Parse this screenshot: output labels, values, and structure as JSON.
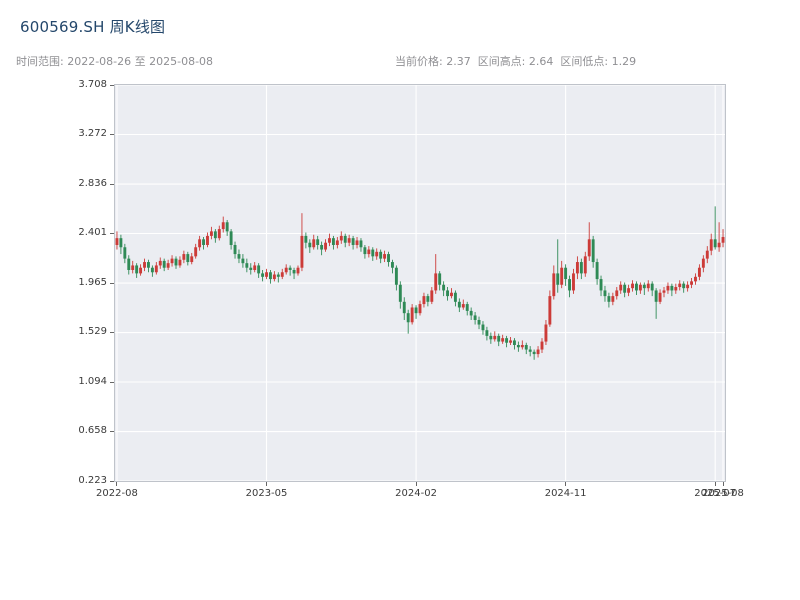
{
  "header": {
    "title": "600569.SH 周K线图",
    "range_label": "时间范围: 2022-08-26 至 2025-08-08",
    "stats_label": "当前价格: 2.37  区间高点: 2.64  区间低点: 1.29"
  },
  "chart_data": {
    "type": "candlestick",
    "symbol": "600569.SH",
    "period": "weekly",
    "title": "600569.SH 周K线图",
    "start_date": "2022-08-26",
    "end_date": "2025-08-08",
    "current_price": 2.37,
    "range_high": 2.64,
    "range_low": 1.29,
    "ylim": [
      0.223,
      3.708
    ],
    "y_ticks": [
      "3.708",
      "3.272",
      "2.836",
      "2.401",
      "1.965",
      "1.529",
      "1.094",
      "0.658",
      "0.223"
    ],
    "x_ticks": [
      {
        "label": "2022-08",
        "week": 0
      },
      {
        "label": "2023-05",
        "week": 38
      },
      {
        "label": "2024-02",
        "week": 76
      },
      {
        "label": "2024-11",
        "week": 114
      },
      {
        "label": "2025-07",
        "week": 152
      },
      {
        "label": "2025-08",
        "week": 154
      }
    ],
    "up_color": "#cc3b38",
    "down_color": "#2f8a56",
    "grid_color": "#ffffff",
    "plot_bg": "#ebedf2",
    "candles": [
      [
        2.3,
        2.42,
        2.26,
        2.36
      ],
      [
        2.36,
        2.39,
        2.22,
        2.28
      ],
      [
        2.28,
        2.31,
        2.14,
        2.18
      ],
      [
        2.18,
        2.21,
        2.04,
        2.08
      ],
      [
        2.08,
        2.16,
        2.05,
        2.12
      ],
      [
        2.12,
        2.14,
        2.01,
        2.05
      ],
      [
        2.05,
        2.13,
        2.03,
        2.1
      ],
      [
        2.1,
        2.18,
        2.07,
        2.15
      ],
      [
        2.15,
        2.17,
        2.06,
        2.1
      ],
      [
        2.1,
        2.12,
        2.02,
        2.06
      ],
      [
        2.06,
        2.15,
        2.04,
        2.12
      ],
      [
        2.12,
        2.19,
        2.09,
        2.16
      ],
      [
        2.16,
        2.18,
        2.07,
        2.1
      ],
      [
        2.1,
        2.17,
        2.08,
        2.14
      ],
      [
        2.14,
        2.21,
        2.11,
        2.18
      ],
      [
        2.18,
        2.2,
        2.09,
        2.12
      ],
      [
        2.12,
        2.2,
        2.1,
        2.17
      ],
      [
        2.17,
        2.25,
        2.14,
        2.22
      ],
      [
        2.22,
        2.24,
        2.12,
        2.15
      ],
      [
        2.15,
        2.23,
        2.13,
        2.2
      ],
      [
        2.2,
        2.31,
        2.18,
        2.28
      ],
      [
        2.28,
        2.38,
        2.25,
        2.35
      ],
      [
        2.35,
        2.37,
        2.26,
        2.3
      ],
      [
        2.3,
        2.41,
        2.28,
        2.38
      ],
      [
        2.38,
        2.46,
        2.35,
        2.42
      ],
      [
        2.42,
        2.44,
        2.32,
        2.36
      ],
      [
        2.36,
        2.47,
        2.34,
        2.44
      ],
      [
        2.44,
        2.55,
        2.41,
        2.5
      ],
      [
        2.5,
        2.52,
        2.38,
        2.42
      ],
      [
        2.42,
        2.44,
        2.26,
        2.3
      ],
      [
        2.3,
        2.33,
        2.18,
        2.22
      ],
      [
        2.22,
        2.26,
        2.14,
        2.18
      ],
      [
        2.18,
        2.22,
        2.1,
        2.14
      ],
      [
        2.14,
        2.18,
        2.06,
        2.1
      ],
      [
        2.1,
        2.14,
        2.04,
        2.08
      ],
      [
        2.08,
        2.15,
        2.06,
        2.12
      ],
      [
        2.12,
        2.14,
        2.01,
        2.05
      ],
      [
        2.05,
        2.08,
        1.98,
        2.02
      ],
      [
        2.02,
        2.09,
        2.0,
        2.06
      ],
      [
        2.06,
        2.08,
        1.96,
        2.0
      ],
      [
        2.0,
        2.07,
        1.98,
        2.04
      ],
      [
        2.04,
        2.06,
        1.97,
        2.02
      ],
      [
        2.02,
        2.09,
        2.0,
        2.06
      ],
      [
        2.06,
        2.13,
        2.04,
        2.1
      ],
      [
        2.1,
        2.12,
        2.03,
        2.08
      ],
      [
        2.08,
        2.1,
        2.0,
        2.05
      ],
      [
        2.05,
        2.12,
        2.03,
        2.1
      ],
      [
        2.1,
        2.58,
        2.07,
        2.38
      ],
      [
        2.38,
        2.41,
        2.27,
        2.32
      ],
      [
        2.32,
        2.35,
        2.23,
        2.28
      ],
      [
        2.28,
        2.39,
        2.26,
        2.35
      ],
      [
        2.35,
        2.38,
        2.26,
        2.3
      ],
      [
        2.3,
        2.33,
        2.21,
        2.26
      ],
      [
        2.26,
        2.35,
        2.24,
        2.32
      ],
      [
        2.32,
        2.4,
        2.29,
        2.36
      ],
      [
        2.36,
        2.38,
        2.26,
        2.3
      ],
      [
        2.3,
        2.37,
        2.27,
        2.34
      ],
      [
        2.34,
        2.42,
        2.31,
        2.38
      ],
      [
        2.38,
        2.4,
        2.28,
        2.32
      ],
      [
        2.32,
        2.39,
        2.29,
        2.36
      ],
      [
        2.36,
        2.38,
        2.26,
        2.3
      ],
      [
        2.3,
        2.37,
        2.27,
        2.34
      ],
      [
        2.34,
        2.36,
        2.24,
        2.28
      ],
      [
        2.28,
        2.3,
        2.18,
        2.22
      ],
      [
        2.22,
        2.29,
        2.19,
        2.26
      ],
      [
        2.26,
        2.28,
        2.16,
        2.2
      ],
      [
        2.2,
        2.27,
        2.17,
        2.24
      ],
      [
        2.24,
        2.26,
        2.14,
        2.18
      ],
      [
        2.18,
        2.25,
        2.15,
        2.22
      ],
      [
        2.22,
        2.24,
        2.11,
        2.15
      ],
      [
        2.15,
        2.17,
        2.05,
        2.1
      ],
      [
        2.1,
        2.12,
        1.9,
        1.95
      ],
      [
        1.95,
        1.98,
        1.74,
        1.8
      ],
      [
        1.8,
        1.84,
        1.64,
        1.7
      ],
      [
        1.7,
        1.73,
        1.52,
        1.62
      ],
      [
        1.62,
        1.78,
        1.6,
        1.75
      ],
      [
        1.75,
        1.77,
        1.65,
        1.7
      ],
      [
        1.7,
        1.81,
        1.68,
        1.78
      ],
      [
        1.78,
        1.88,
        1.75,
        1.85
      ],
      [
        1.85,
        1.87,
        1.76,
        1.8
      ],
      [
        1.8,
        1.93,
        1.78,
        1.9
      ],
      [
        1.9,
        2.22,
        1.87,
        2.05
      ],
      [
        2.05,
        2.07,
        1.9,
        1.95
      ],
      [
        1.95,
        1.98,
        1.85,
        1.9
      ],
      [
        1.9,
        1.93,
        1.81,
        1.85
      ],
      [
        1.85,
        1.92,
        1.83,
        1.88
      ],
      [
        1.88,
        1.9,
        1.76,
        1.8
      ],
      [
        1.8,
        1.83,
        1.71,
        1.75
      ],
      [
        1.75,
        1.82,
        1.73,
        1.78
      ],
      [
        1.78,
        1.8,
        1.68,
        1.72
      ],
      [
        1.72,
        1.75,
        1.64,
        1.68
      ],
      [
        1.68,
        1.71,
        1.6,
        1.64
      ],
      [
        1.64,
        1.67,
        1.56,
        1.6
      ],
      [
        1.6,
        1.63,
        1.51,
        1.55
      ],
      [
        1.55,
        1.58,
        1.46,
        1.5
      ],
      [
        1.5,
        1.53,
        1.43,
        1.47
      ],
      [
        1.47,
        1.54,
        1.45,
        1.5
      ],
      [
        1.5,
        1.52,
        1.41,
        1.45
      ],
      [
        1.45,
        1.51,
        1.43,
        1.48
      ],
      [
        1.48,
        1.5,
        1.4,
        1.44
      ],
      [
        1.44,
        1.49,
        1.42,
        1.46
      ],
      [
        1.46,
        1.48,
        1.38,
        1.42
      ],
      [
        1.42,
        1.45,
        1.36,
        1.4
      ],
      [
        1.4,
        1.46,
        1.38,
        1.42
      ],
      [
        1.42,
        1.44,
        1.34,
        1.38
      ],
      [
        1.38,
        1.41,
        1.32,
        1.36
      ],
      [
        1.36,
        1.38,
        1.29,
        1.34
      ],
      [
        1.34,
        1.41,
        1.31,
        1.38
      ],
      [
        1.38,
        1.48,
        1.35,
        1.45
      ],
      [
        1.45,
        1.64,
        1.42,
        1.6
      ],
      [
        1.6,
        1.9,
        1.58,
        1.85
      ],
      [
        1.85,
        2.12,
        1.82,
        2.05
      ],
      [
        2.05,
        2.35,
        1.88,
        1.95
      ],
      [
        1.95,
        2.16,
        1.92,
        2.1
      ],
      [
        2.1,
        2.13,
        1.94,
        2.0
      ],
      [
        2.0,
        2.03,
        1.84,
        1.9
      ],
      [
        1.9,
        2.09,
        1.87,
        2.05
      ],
      [
        2.05,
        2.2,
        2.0,
        2.15
      ],
      [
        2.15,
        2.18,
        2.0,
        2.05
      ],
      [
        2.05,
        2.24,
        2.02,
        2.2
      ],
      [
        2.2,
        2.5,
        2.16,
        2.35
      ],
      [
        2.35,
        2.38,
        2.1,
        2.15
      ],
      [
        2.15,
        2.18,
        1.95,
        2.0
      ],
      [
        2.0,
        2.03,
        1.85,
        1.9
      ],
      [
        1.9,
        1.94,
        1.8,
        1.85
      ],
      [
        1.85,
        1.88,
        1.75,
        1.8
      ],
      [
        1.8,
        1.88,
        1.77,
        1.85
      ],
      [
        1.85,
        1.93,
        1.82,
        1.9
      ],
      [
        1.9,
        1.98,
        1.87,
        1.95
      ],
      [
        1.95,
        1.97,
        1.84,
        1.88
      ],
      [
        1.88,
        1.95,
        1.85,
        1.92
      ],
      [
        1.92,
        1.99,
        1.89,
        1.96
      ],
      [
        1.96,
        1.98,
        1.86,
        1.9
      ],
      [
        1.9,
        1.97,
        1.87,
        1.95
      ],
      [
        1.95,
        1.97,
        1.86,
        1.92
      ],
      [
        1.92,
        1.99,
        1.89,
        1.96
      ],
      [
        1.96,
        1.98,
        1.85,
        1.9
      ],
      [
        1.9,
        1.92,
        1.65,
        1.8
      ],
      [
        1.8,
        1.91,
        1.78,
        1.88
      ],
      [
        1.88,
        1.93,
        1.84,
        1.9
      ],
      [
        1.9,
        1.97,
        1.87,
        1.94
      ],
      [
        1.94,
        1.96,
        1.85,
        1.9
      ],
      [
        1.9,
        1.96,
        1.87,
        1.93
      ],
      [
        1.93,
        1.99,
        1.9,
        1.96
      ],
      [
        1.96,
        1.98,
        1.88,
        1.92
      ],
      [
        1.92,
        1.98,
        1.89,
        1.95
      ],
      [
        1.95,
        2.01,
        1.92,
        1.98
      ],
      [
        1.98,
        2.05,
        1.95,
        2.02
      ],
      [
        2.02,
        2.13,
        1.99,
        2.1
      ],
      [
        2.1,
        2.21,
        2.06,
        2.18
      ],
      [
        2.18,
        2.29,
        2.14,
        2.25
      ],
      [
        2.25,
        2.4,
        2.21,
        2.35
      ],
      [
        2.35,
        2.64,
        2.26,
        2.28
      ],
      [
        2.28,
        2.5,
        2.24,
        2.32
      ],
      [
        2.32,
        2.44,
        2.28,
        2.37
      ]
    ]
  }
}
